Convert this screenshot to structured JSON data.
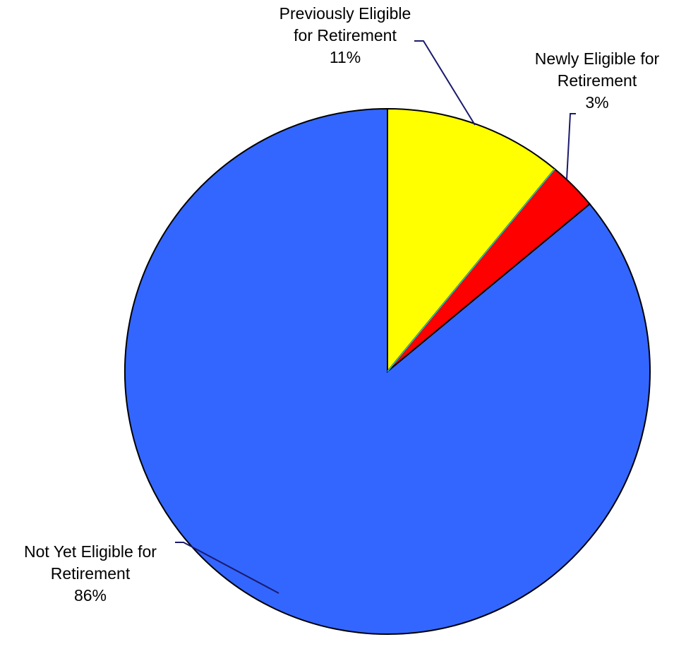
{
  "chart_data": {
    "type": "pie",
    "title": "",
    "start_angle_deg": 0,
    "direction": "clockwise",
    "slices": [
      {
        "label_lines": [
          "Previously Eligible",
          "for Retirement"
        ],
        "label": "Previously Eligible for Retirement",
        "value": 11,
        "value_label": "11%",
        "color": "#ffff00"
      },
      {
        "label_lines": [
          "Newly Eligible for",
          "Retirement"
        ],
        "label": "Newly Eligible for Retirement",
        "value": 3,
        "value_label": "3%",
        "color": "#ff0000"
      },
      {
        "label_lines": [
          "Not Yet Eligible for",
          "Retirement"
        ],
        "label": "Not Yet Eligible for Retirement",
        "value": 86,
        "value_label": "86%",
        "color": "#3366ff"
      }
    ],
    "legend": "none"
  }
}
